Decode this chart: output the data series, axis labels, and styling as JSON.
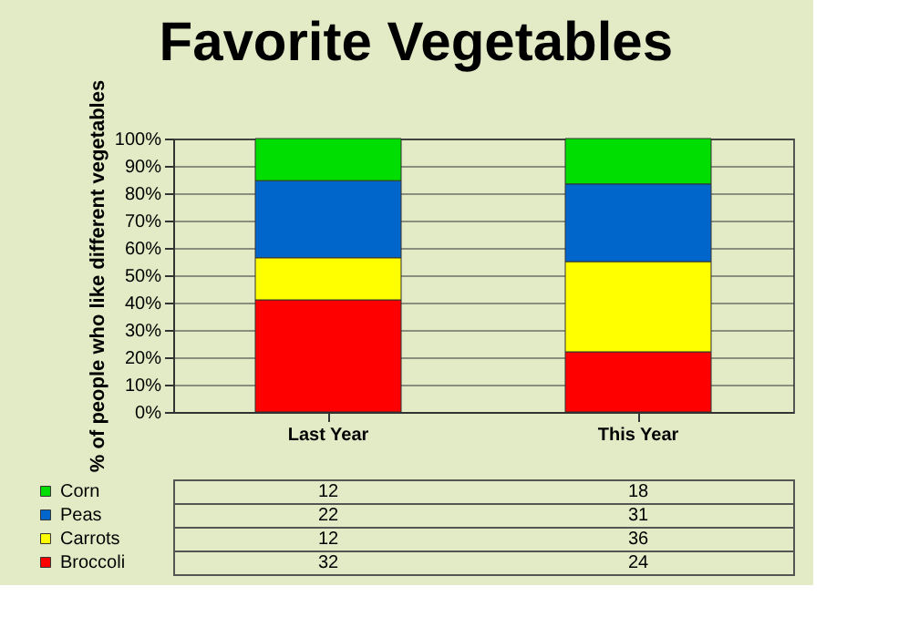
{
  "chart_data": {
    "type": "bar",
    "stacked": true,
    "title": "Favorite Vegetables",
    "ylabel": "% of people who like different vegetables",
    "categories": [
      "Last Year",
      "This Year"
    ],
    "series": [
      {
        "name": "Broccoli",
        "color": "#ff0000",
        "values": [
          41.0,
          22.0
        ]
      },
      {
        "name": "Carrots",
        "color": "#ffff00",
        "values": [
          15.4,
          33.0
        ]
      },
      {
        "name": "Peas",
        "color": "#0066cc",
        "values": [
          28.2,
          28.4
        ]
      },
      {
        "name": "Corn",
        "color": "#00dd00",
        "values": [
          15.4,
          16.6
        ]
      }
    ],
    "annotations": [
      "12",
      "18",
      "22",
      "31",
      "12",
      "36",
      "32",
      "24"
    ],
    "ylim": [
      0,
      100
    ],
    "yticks": [
      {
        "value": 0,
        "label": "0%"
      },
      {
        "value": 10,
        "label": "10%"
      },
      {
        "value": 20,
        "label": "20%"
      },
      {
        "value": 30,
        "label": "30%"
      },
      {
        "value": 40,
        "label": "40%"
      },
      {
        "value": 50,
        "label": "50%"
      },
      {
        "value": 60,
        "label": "60%"
      },
      {
        "value": 70,
        "label": "70%"
      },
      {
        "value": 80,
        "label": "80%"
      },
      {
        "value": 90,
        "label": "90%"
      },
      {
        "value": 100,
        "label": "100%"
      }
    ],
    "grid": "y",
    "legend": "bottom"
  }
}
